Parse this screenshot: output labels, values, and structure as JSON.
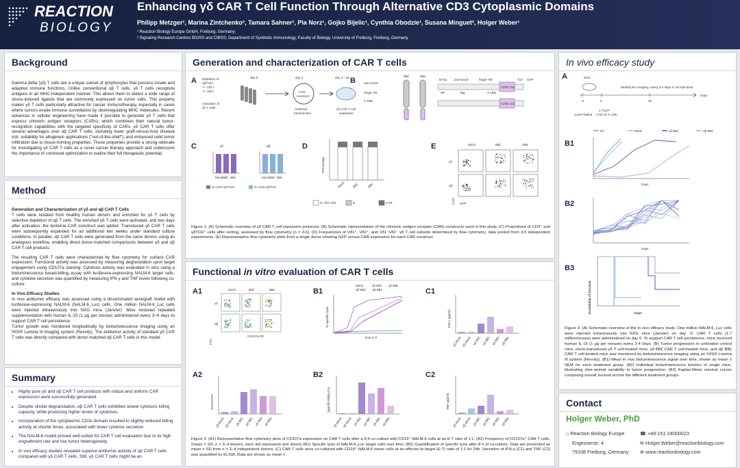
{
  "header": {
    "logo": [
      "REACTION",
      "BIOLOGY"
    ],
    "title": "Enhancing γδ CAR T Cell Function Through Alternative CD3 Cytoplasmic Domains",
    "authors": "Philipp Metzger¹, Marina Zintchenko², Tamara Sahner¹, Pia Norz¹, Gojko Bijelic¹, Cynthia Obodzie¹, Susana Minguet², Holger Weber¹",
    "affiliations": [
      "¹ Reaction Biology Europe GmbH, Freiburg, Germany;",
      "² Signaling Research Centres BIOSS and CIBSS; Department of Synthetic Immunology, Faculty of Biology, University of Freiburg, Freiburg, Germany"
    ]
  },
  "background": {
    "heading": "Background",
    "text": "Gamma delta (γδ) T cells are a unique subset of lymphocytes that possess innate and adaptive immune functions. Unlike conventional αβ T cells, γδ T cells recognize antigens in an MHC-independent manner. This allows them to detect a wide range of stress-induced ligands that are commonly expressed on tumor cells. This property makes γδ T cells particularly attractive for cancer immunotherapy, especially in cases where tumors evade immune surveillance by downregulating MHC molecules. Recent advances in cellular engineering have made it possible to generate γδ T cells that express chimeric antigen receptors (CARs), which combines their natural tumor-recognition capabilities with the targeted specificity of CARs. γδ CAR T cells offer several advantages over αβ CAR T cells, including lower graft-versus-host disease risk, suitability for allogeneic applications (\"out-of-the-shelf\"), and enhanced solid tumor infiltration due to tissue-homing properties. These properties provide a strong rationale for investigating γδ CAR T cells as a novel cancer therapy approach and underscore the importance of continued optimization to realize their full therapeutic potential."
  },
  "method": {
    "heading": "Method",
    "sub1": "Generation and Characterization of γδ and αβ CAR T Cells",
    "p1": "T cells were isolated from healthy human donors and enriched for γδ T cells by selective depletion of αβ T cells. The enriched γδ T cells were activated, and two days after activation, the lentiviral CAR construct was added. Transduced γδ CAR T cells were subsequently expanded for an additional two weeks under standard culture conditions. In parallel, αβ CAR T cells were generated from the same donors using an analogous workflow, enabling direct donor-matched comparisons between γδ and αβ CAR T cell products.",
    "p2": "The resulting CAR T cells were characterized by flow cytometry for surface CAR expression. Functional activity was assessed by measuring degranulation upon target engagement using CD107a staining. Cytotoxic activity was evaluated in vitro using a bioluminescence based-killing assay with luciferase-expressing NALM-6 target cells, and cytokine secretion was quantified by measuring IFN-γ and TNF levels following co-culture.",
    "sub2": "In Vivo Efficacy Studies",
    "p3": "In vivo antitumor efficacy was assessed using a disseminated xenograft model with luciferase-expressing NALM-6 (NALM-6_Luc) cells. One million NALM-6_Luc cells were injected intravenously into NXG mice (Janvier). Mice received repeated supplementation with human IL-15 (1 µg per mouse) administered every 3–4 days to support CAR T cell persistence.",
    "p4": "Tumor growth was monitored longitudinally by bioluminescence imaging using an IVIS® Lumina III imaging system (Revvity). The antitumor activity of standard γδ CAR T cells was directly compared with donor-matched αβ CAR T cells in this model."
  },
  "summary": {
    "heading": "Summary",
    "items": [
      "Highly pure γδ and αβ CAR T cell products with robust and uniform CAR expression were successfully generated.",
      "Despite similar degranulation, αβ CAR T cells exhibited slower cytotoxic killing capacity, while producing higher levels of cytokines.",
      "Incorporation of the cytoplasmic CD3ε domain resulted in slightly reduced killing activity at shorter times, associated with lower cytokine secretion",
      "The NALM-6 model proved well-suited for CAR T cell evaluation due to its high engraftment rate and low tumor heterogeneity.",
      "In vivo efficacy studies revealed superior antitumor activity of αβ CAR T cells compared with γδ CAR T cells. Still, γδ CAR T cells might be an"
    ]
  },
  "generation": {
    "heading": "Generation and characterization of CAR T cells",
    "labels": [
      "A",
      "Depletion of",
      "αβTCR+",
      "+/- Vδ1+",
      "+/- Vδ2+",
      "Activation of",
      "γδ T cells",
      "day 0",
      "day 2",
      "day 3 - 16",
      "CAR",
      "construct",
      "lentiviral",
      "transduction",
      "γδ CAR T cell",
      "expansion",
      "B",
      "BBζ",
      "BBε",
      "EF1α",
      "anti-CD19",
      "hinge-TM",
      "CD3ζ ICD",
      "CD3ε ICD",
      "T2A",
      "GFP",
      "C",
      "γδ",
      "αβ",
      "% CD3+γδTCR+",
      "% CD3+γδTCR-",
      "D",
      "Percentage",
      "Mock",
      "% Vδ1+",
      "% Vδ2+",
      "% Vδ1-Vδ2-",
      "E",
      "CAR",
      "SP",
      "Tag",
      "4-1BB"
    ],
    "caption": "Figure 1: (A) Schematic overview of γδ CAR T cell expansion protocols. (B) Schematic representation of the chimeric antigen receptor (CAR) constructs used in this study. (C) Proportions of CD3⁺ and γδTCR⁺ cells after sorting, assessed by flow cytometry (n = 3-5). (D) Frequencies of Vδ1⁺, Vδ2⁺, and Vδ1⁻Vδ2⁻ γδ T cell subsets determined by flow cytometry; data pooled from 3-5 independent experiments. (E) Representative flow cytometry plots from a single donor showing GFP versus CAR expression for each CAR construct."
  },
  "functional": {
    "heading": [
      "Functional ",
      "in vitro",
      " evaluation of CAR T cells"
    ],
    "labels": [
      "A1",
      "FSC",
      "CD107a PE",
      "B1",
      "% specific lysis",
      "time in h",
      "C1",
      "IFN-γ (pg/ml)",
      "A2",
      "%CD107a+",
      "B2",
      "Specific killing (%)",
      "C2",
      "TNF (pg/ml)",
      "Mock",
      "γδ BBζ",
      "γδ BBε",
      "αβ BBζ",
      "αβ BBε"
    ],
    "categories": [
      "γδ Mock",
      "αβ Mock",
      "γδ BBζ",
      "αβ BBζ",
      "γδ BBε",
      "αβ BBε"
    ],
    "caption": "Figure 2: (A1) Representative flow cytometry plots of CD107a expression on CAR T cells after a 4-h co-culture with CD19⁺ NALM-6 cells at an E:T ratio of 1:1. (A2) Frequency of CD107a⁺ CAR T cells. (mean ± SD, n = 3–4 donors; each dot represents one donor) (B1) Specific lysis of NALM-6_Luc target cells over time. (B2) Quantification of specific lysis after 8 h of co-culture. Data are presented as mean ± SD from n = 3–4 independent donors. (C) CAR T cells were co-cultured with CD19⁺ NALM-6 tumor cells at an effector-to-target (E:T) ratio of 1:1 for 24h. Secretion of IFN-γ (C1) and TNF (C2) was quantified by ELISA. Data are shown as mean ±"
  },
  "in_vivo": {
    "heading": "In vivo efficacy study",
    "labels": [
      "A",
      "NXG",
      "Weekly BLI imaging, every 3-4 days IL-15 injections",
      "-3",
      "0",
      "30",
      "Days",
      "1x10⁶ Nalm6",
      "1,7x10⁶",
      "CAR γδ T cells",
      "B1",
      "B2",
      "B3",
      "NT",
      "Probability of Survival"
    ],
    "caption": "Figure 3: (A) Schematic overview of the in vivo efficacy study. One million NALM-6_Luc cells were injected intravenously into NXG mice (Janvier) on day -3. CAR T cells (1.7 million/mouse) were administered on day 0. To support CAR T cell persistence, mice received human IL-15 (1 µg per mouse) every 3-4 days. (B) Tumor progression in untreated control mice, mock-transduced γδ T cell-treated mice, γδ BBζ CAR T cell-treated mice, and αβ BBζ CAR T cell-treated mice was monitored by bioluminescence imaging using an IVIS® Lumina III system (Revvity). (B1) Mean in vivo bioluminescence signal over time, shown as mean ± SEM for each treatment group. (B2) Individual bioluminescence kinetics of single mice, illustrating inter-animal variability in tumor progression. (B3) Kaplan-Meier survival curves comparing overall survival across the different treatment groups."
  },
  "contact": {
    "heading": "Contact",
    "name": "Holger Weber, PhD",
    "org": "Reaction Biology Europe",
    "street": "Engesserstr. 4",
    "city": "79108 Freiburg, Germany",
    "phone": "+49-151-24000023",
    "email": "Holger.Weber@reactionbiology.com",
    "web": "www.reactionbiology.com"
  }
}
